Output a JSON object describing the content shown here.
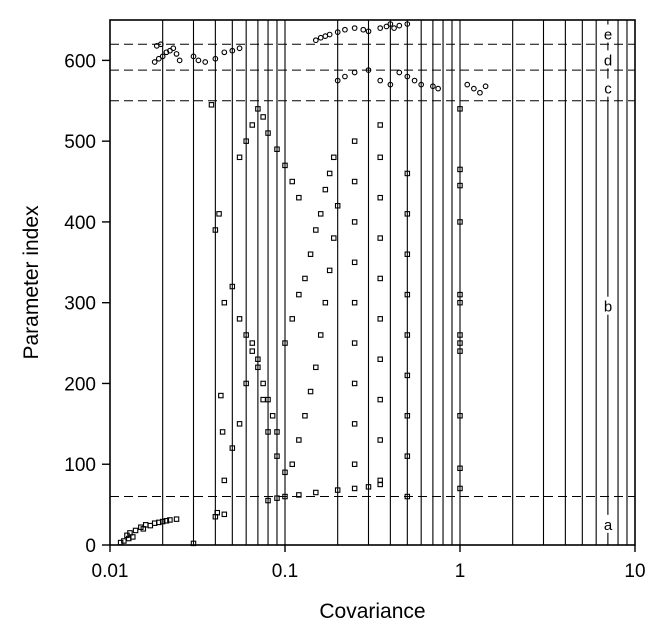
{
  "chart_data": {
    "type": "scatter",
    "title": "",
    "xlabel": "Covariance",
    "ylabel": "Parameter index",
    "xscale": "log",
    "xlim": [
      0.01,
      10
    ],
    "ylim": [
      0,
      650
    ],
    "grid": "vertical lines at 1-9 multiples of each decade",
    "x_ticks": [
      {
        "value": 0.01,
        "label": "0.01"
      },
      {
        "value": 0.1,
        "label": "0.1"
      },
      {
        "value": 1,
        "label": "1"
      },
      {
        "value": 10,
        "label": "10"
      }
    ],
    "y_ticks": [
      {
        "value": 0,
        "label": "0"
      },
      {
        "value": 100,
        "label": "100"
      },
      {
        "value": 200,
        "label": "200"
      },
      {
        "value": 300,
        "label": "300"
      },
      {
        "value": 400,
        "label": "400"
      },
      {
        "value": 500,
        "label": "500"
      },
      {
        "value": 600,
        "label": "600"
      }
    ],
    "region_boundaries": [
      60,
      550,
      588,
      620
    ],
    "region_labels": [
      {
        "label": "a",
        "y": 25
      },
      {
        "label": "b",
        "y": 295
      },
      {
        "label": "c",
        "y": 565
      },
      {
        "label": "d",
        "y": 600
      },
      {
        "label": "e",
        "y": 632
      }
    ],
    "series": [
      {
        "marker": "open-square",
        "points": [
          [
            0.012,
            5
          ],
          [
            0.0125,
            12
          ],
          [
            0.013,
            15
          ],
          [
            0.014,
            18
          ],
          [
            0.015,
            22
          ],
          [
            0.016,
            25
          ],
          [
            0.018,
            27
          ],
          [
            0.02,
            29
          ],
          [
            0.022,
            31
          ],
          [
            0.024,
            32
          ],
          [
            0.0115,
            3
          ],
          [
            0.0135,
            10
          ],
          [
            0.017,
            24
          ],
          [
            0.019,
            28
          ],
          [
            0.021,
            30
          ],
          [
            0.0128,
            8
          ],
          [
            0.0155,
            20
          ],
          [
            0.04,
            35
          ],
          [
            0.041,
            40
          ],
          [
            0.045,
            38
          ],
          [
            0.03,
            2
          ],
          [
            0.08,
            55
          ],
          [
            0.09,
            58
          ],
          [
            0.1,
            60
          ],
          [
            0.12,
            62
          ],
          [
            0.15,
            65
          ],
          [
            0.2,
            68
          ],
          [
            0.25,
            70
          ],
          [
            0.3,
            72
          ],
          [
            0.35,
            75
          ],
          [
            0.045,
            80
          ],
          [
            0.05,
            120
          ],
          [
            0.055,
            150
          ],
          [
            0.06,
            200
          ],
          [
            0.065,
            250
          ],
          [
            0.07,
            230
          ],
          [
            0.075,
            180
          ],
          [
            0.08,
            140
          ],
          [
            0.09,
            110
          ],
          [
            0.1,
            90
          ],
          [
            0.11,
            100
          ],
          [
            0.12,
            130
          ],
          [
            0.13,
            160
          ],
          [
            0.14,
            190
          ],
          [
            0.15,
            220
          ],
          [
            0.16,
            260
          ],
          [
            0.17,
            300
          ],
          [
            0.18,
            340
          ],
          [
            0.19,
            380
          ],
          [
            0.2,
            420
          ],
          [
            0.1,
            250
          ],
          [
            0.11,
            280
          ],
          [
            0.12,
            310
          ],
          [
            0.13,
            330
          ],
          [
            0.14,
            360
          ],
          [
            0.15,
            390
          ],
          [
            0.16,
            410
          ],
          [
            0.17,
            440
          ],
          [
            0.18,
            460
          ],
          [
            0.19,
            480
          ],
          [
            0.055,
            480
          ],
          [
            0.06,
            500
          ],
          [
            0.065,
            520
          ],
          [
            0.07,
            540
          ],
          [
            0.075,
            530
          ],
          [
            0.08,
            510
          ],
          [
            0.09,
            490
          ],
          [
            0.1,
            470
          ],
          [
            0.11,
            450
          ],
          [
            0.12,
            430
          ],
          [
            0.045,
            300
          ],
          [
            0.05,
            320
          ],
          [
            0.055,
            280
          ],
          [
            0.06,
            260
          ],
          [
            0.065,
            240
          ],
          [
            0.07,
            220
          ],
          [
            0.075,
            200
          ],
          [
            0.08,
            180
          ],
          [
            0.085,
            160
          ],
          [
            0.09,
            140
          ],
          [
            0.25,
            100
          ],
          [
            0.25,
            150
          ],
          [
            0.25,
            200
          ],
          [
            0.25,
            250
          ],
          [
            0.25,
            300
          ],
          [
            0.25,
            350
          ],
          [
            0.25,
            400
          ],
          [
            0.25,
            450
          ],
          [
            0.25,
            500
          ],
          [
            0.35,
            80
          ],
          [
            0.35,
            130
          ],
          [
            0.35,
            180
          ],
          [
            0.35,
            230
          ],
          [
            0.35,
            280
          ],
          [
            0.35,
            330
          ],
          [
            0.35,
            380
          ],
          [
            0.35,
            430
          ],
          [
            0.35,
            480
          ],
          [
            0.35,
            520
          ],
          [
            0.5,
            60
          ],
          [
            0.5,
            110
          ],
          [
            0.5,
            160
          ],
          [
            0.5,
            210
          ],
          [
            0.5,
            260
          ],
          [
            0.5,
            310
          ],
          [
            0.5,
            360
          ],
          [
            0.5,
            410
          ],
          [
            0.5,
            460
          ],
          [
            1,
            70
          ],
          [
            1,
            95
          ],
          [
            1,
            160
          ],
          [
            1,
            240
          ],
          [
            1,
            250
          ],
          [
            1,
            260
          ],
          [
            1,
            300
          ],
          [
            1,
            310
          ],
          [
            1,
            400
          ],
          [
            1,
            445
          ],
          [
            1,
            465
          ],
          [
            1,
            540
          ],
          [
            0.04,
            390
          ],
          [
            0.042,
            410
          ],
          [
            0.044,
            140
          ],
          [
            0.043,
            185
          ],
          [
            0.038,
            545
          ]
        ]
      },
      {
        "marker": "open-circle",
        "points": [
          [
            0.018,
            598
          ],
          [
            0.019,
            602
          ],
          [
            0.02,
            605
          ],
          [
            0.021,
            610
          ],
          [
            0.022,
            612
          ],
          [
            0.023,
            615
          ],
          [
            0.0185,
            618
          ],
          [
            0.0195,
            620
          ],
          [
            0.024,
            608
          ],
          [
            0.025,
            600
          ],
          [
            0.03,
            605
          ],
          [
            0.032,
            600
          ],
          [
            0.035,
            598
          ],
          [
            0.04,
            602
          ],
          [
            0.045,
            610
          ],
          [
            0.05,
            612
          ],
          [
            0.055,
            615
          ],
          [
            0.15,
            625
          ],
          [
            0.16,
            628
          ],
          [
            0.17,
            630
          ],
          [
            0.18,
            632
          ],
          [
            0.2,
            635
          ],
          [
            0.22,
            638
          ],
          [
            0.25,
            640
          ],
          [
            0.28,
            638
          ],
          [
            0.3,
            636
          ],
          [
            0.35,
            640
          ],
          [
            0.38,
            642
          ],
          [
            0.4,
            645
          ],
          [
            0.42,
            640
          ],
          [
            0.45,
            643
          ],
          [
            0.5,
            645
          ],
          [
            0.2,
            575
          ],
          [
            0.22,
            580
          ],
          [
            0.25,
            585
          ],
          [
            0.3,
            588
          ],
          [
            0.35,
            575
          ],
          [
            0.4,
            570
          ],
          [
            0.45,
            585
          ],
          [
            0.5,
            580
          ],
          [
            0.55,
            575
          ],
          [
            0.6,
            570
          ],
          [
            0.7,
            568
          ],
          [
            0.75,
            565
          ],
          [
            1.1,
            570
          ],
          [
            1.2,
            565
          ],
          [
            1.3,
            560
          ],
          [
            1.4,
            568
          ]
        ]
      }
    ]
  }
}
